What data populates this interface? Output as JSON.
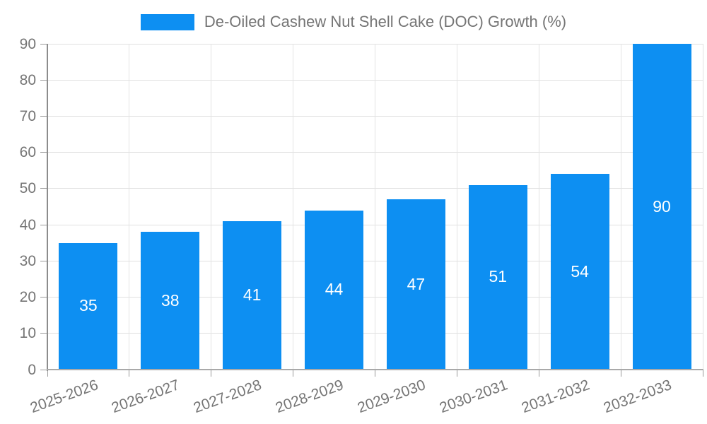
{
  "legend": {
    "label": "De-Oiled Cashew Nut Shell Cake (DOC) Growth (%)",
    "swatch_color": "#0d8ff2"
  },
  "chart_data": {
    "type": "bar",
    "title": "De-Oiled Cashew Nut Shell Cake (DOC) Growth (%)",
    "categories": [
      "2025-2026",
      "2026-2027",
      "2027-2028",
      "2028-2029",
      "2029-2030",
      "2030-2031",
      "2031-2032",
      "2032-2033"
    ],
    "series": [
      {
        "name": "De-Oiled Cashew Nut Shell Cake (DOC) Growth (%)",
        "values": [
          35,
          38,
          41,
          44,
          47,
          51,
          54,
          90
        ]
      }
    ],
    "xlabel": "",
    "ylabel": "",
    "ylim": [
      0,
      90
    ],
    "ytick_step": 10,
    "ytick_labels": [
      "0",
      "10",
      "20",
      "30",
      "40",
      "50",
      "60",
      "70",
      "80",
      "90"
    ],
    "grid": true,
    "legend_position": "top-center",
    "bar_color": "#0d8ff2",
    "bar_label_color": "#ffffff",
    "axis_text_color": "#757575",
    "gridline_color": "#e0e0e0"
  }
}
